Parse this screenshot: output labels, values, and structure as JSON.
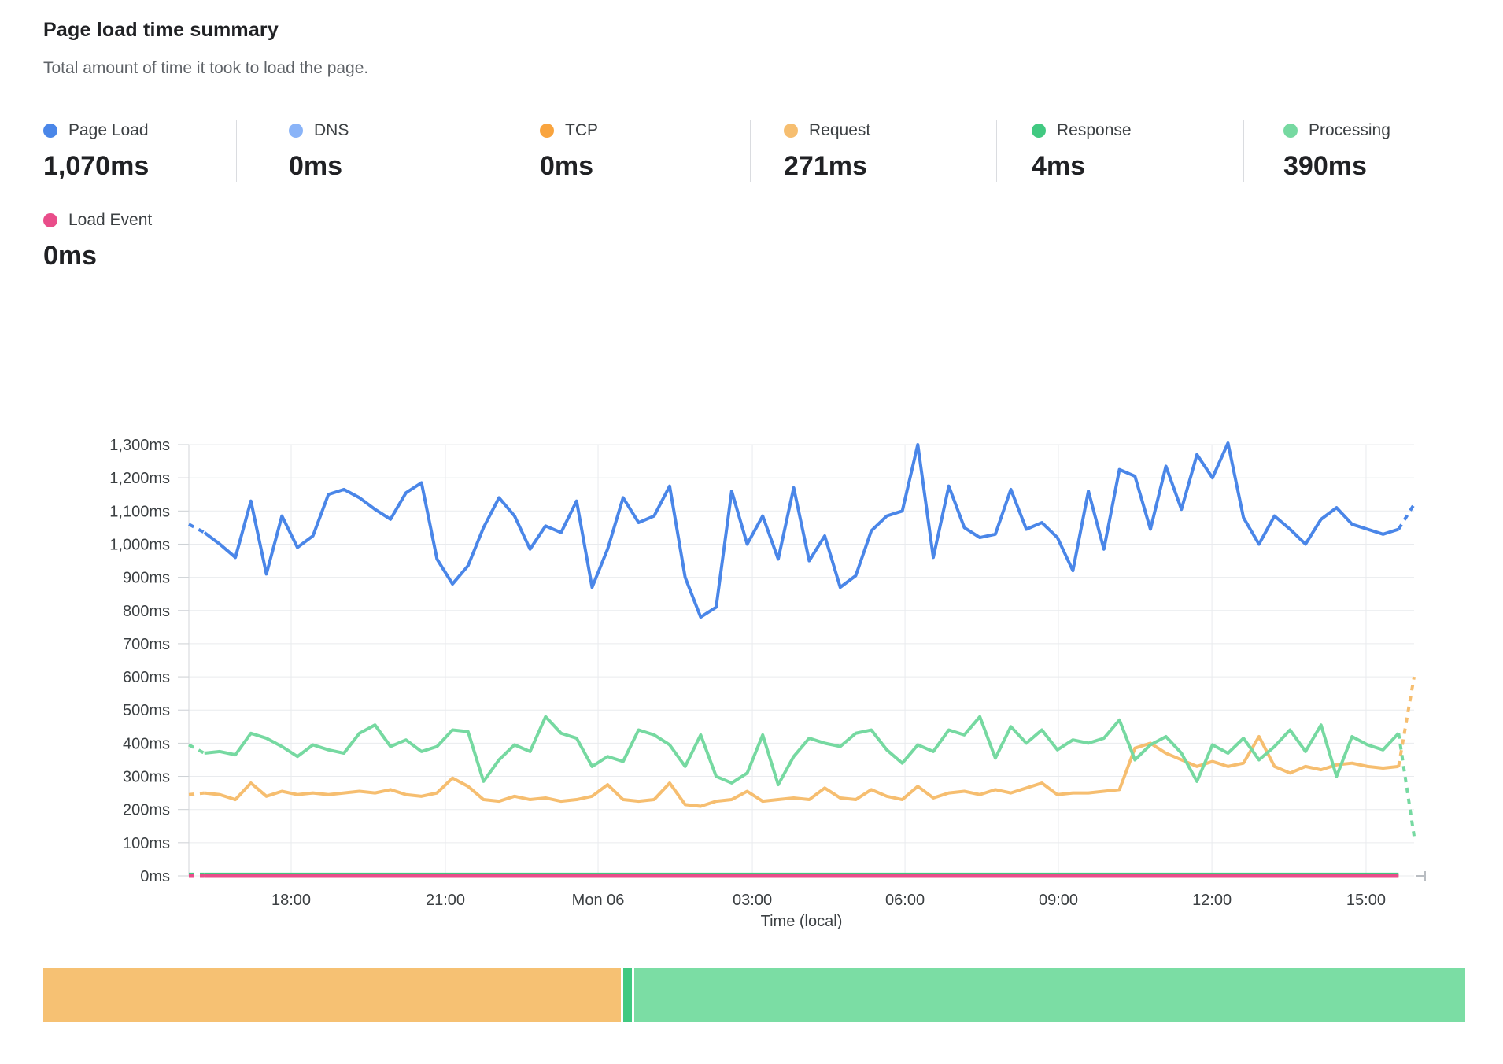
{
  "header": {
    "title": "Page load time summary",
    "subtitle": "Total amount of time it took to load the page."
  },
  "metrics": {
    "items": [
      {
        "label": "Page Load",
        "value": "1,070ms",
        "color": "#4a86e8"
      },
      {
        "label": "DNS",
        "value": "0ms",
        "color": "#8ab4f8"
      },
      {
        "label": "TCP",
        "value": "0ms",
        "color": "#f9a43e"
      },
      {
        "label": "Request",
        "value": "271ms",
        "color": "#f6be70"
      },
      {
        "label": "Response",
        "value": "4ms",
        "color": "#41c981"
      },
      {
        "label": "Processing",
        "value": "390ms",
        "color": "#76d9a1"
      }
    ],
    "load_event": {
      "label": "Load Event",
      "value": "0ms",
      "color": "#e94d8a"
    }
  },
  "chart_data": {
    "type": "line",
    "title": "Page load time summary",
    "xlabel": "Time (local)",
    "ylabel": "",
    "ylim": [
      0,
      1300
    ],
    "y_tick_step": 100,
    "grid": true,
    "legend_position": "top (metric chips)",
    "y_ticks": [
      "0ms",
      "100ms",
      "200ms",
      "300ms",
      "400ms",
      "500ms",
      "600ms",
      "700ms",
      "800ms",
      "900ms",
      "1,000ms",
      "1,100ms",
      "1,200ms",
      "1,300ms"
    ],
    "x_ticks": [
      {
        "label": "18:00",
        "f": 0.0835
      },
      {
        "label": "21:00",
        "f": 0.2094
      },
      {
        "label": "Mon 06",
        "f": 0.334
      },
      {
        "label": "03:00",
        "f": 0.4599
      },
      {
        "label": "06:00",
        "f": 0.5845
      },
      {
        "label": "09:00",
        "f": 0.7097
      },
      {
        "label": "12:00",
        "f": 0.835
      },
      {
        "label": "15:00",
        "f": 0.9608
      }
    ],
    "series": [
      {
        "name": "DNS",
        "color": "#8ab4f8",
        "width": 4,
        "flat": 0
      },
      {
        "name": "TCP",
        "color": "#f9a43e",
        "width": 4,
        "flat": 0
      },
      {
        "name": "Response",
        "color": "#41c981",
        "width": 4,
        "flat": 5
      },
      {
        "name": "Request",
        "color": "#f6be70",
        "width": 4,
        "values": [
          245,
          250,
          245,
          230,
          280,
          240,
          255,
          245,
          250,
          245,
          250,
          255,
          250,
          260,
          245,
          240,
          250,
          295,
          270,
          230,
          225,
          240,
          230,
          235,
          225,
          230,
          240,
          275,
          230,
          225,
          230,
          280,
          215,
          210,
          225,
          230,
          255,
          225,
          230,
          235,
          230,
          265,
          235,
          230,
          260,
          240,
          230,
          270,
          235,
          250,
          255,
          245,
          260,
          250,
          265,
          280,
          245,
          250,
          250,
          255,
          260,
          385,
          400,
          370,
          350,
          330,
          345,
          330,
          340,
          420,
          330,
          310,
          330,
          320,
          335,
          340,
          330,
          325,
          330,
          600
        ]
      },
      {
        "name": "Processing",
        "color": "#76d9a1",
        "width": 4,
        "values": [
          395,
          370,
          375,
          365,
          430,
          415,
          390,
          360,
          395,
          380,
          370,
          430,
          455,
          390,
          410,
          375,
          390,
          440,
          435,
          285,
          350,
          395,
          375,
          480,
          430,
          415,
          330,
          360,
          345,
          440,
          425,
          395,
          330,
          425,
          300,
          280,
          310,
          425,
          275,
          360,
          415,
          400,
          390,
          430,
          440,
          380,
          340,
          395,
          375,
          440,
          425,
          480,
          355,
          450,
          400,
          440,
          380,
          410,
          400,
          415,
          470,
          350,
          395,
          420,
          370,
          285,
          395,
          370,
          415,
          350,
          390,
          440,
          375,
          455,
          300,
          420,
          395,
          380,
          430,
          120
        ]
      },
      {
        "name": "Page Load",
        "color": "#4a86e8",
        "width": 4,
        "values": [
          1060,
          1035,
          1000,
          960,
          1130,
          910,
          1085,
          990,
          1025,
          1150,
          1165,
          1140,
          1105,
          1075,
          1155,
          1185,
          955,
          880,
          935,
          1050,
          1140,
          1085,
          985,
          1055,
          1035,
          1130,
          870,
          985,
          1140,
          1065,
          1085,
          1175,
          900,
          780,
          810,
          1160,
          1000,
          1085,
          955,
          1170,
          950,
          1025,
          870,
          905,
          1040,
          1085,
          1100,
          1300,
          960,
          1175,
          1050,
          1020,
          1030,
          1165,
          1045,
          1065,
          1020,
          920,
          1160,
          985,
          1225,
          1205,
          1045,
          1235,
          1105,
          1270,
          1200,
          1305,
          1080,
          1000,
          1085,
          1045,
          1000,
          1075,
          1110,
          1060,
          1045,
          1030,
          1045,
          1120
        ]
      },
      {
        "name": "Load Event",
        "color": "#e94d8a",
        "width": 5,
        "flat": 0
      }
    ]
  },
  "breakdown_bar": {
    "segments": [
      {
        "name": "Request",
        "color": "#f6c173",
        "ms": 271
      },
      {
        "name": "Response",
        "color": "#41c981",
        "ms": 4
      },
      {
        "name": "Processing",
        "color": "#7bdda4",
        "ms": 390
      }
    ]
  }
}
